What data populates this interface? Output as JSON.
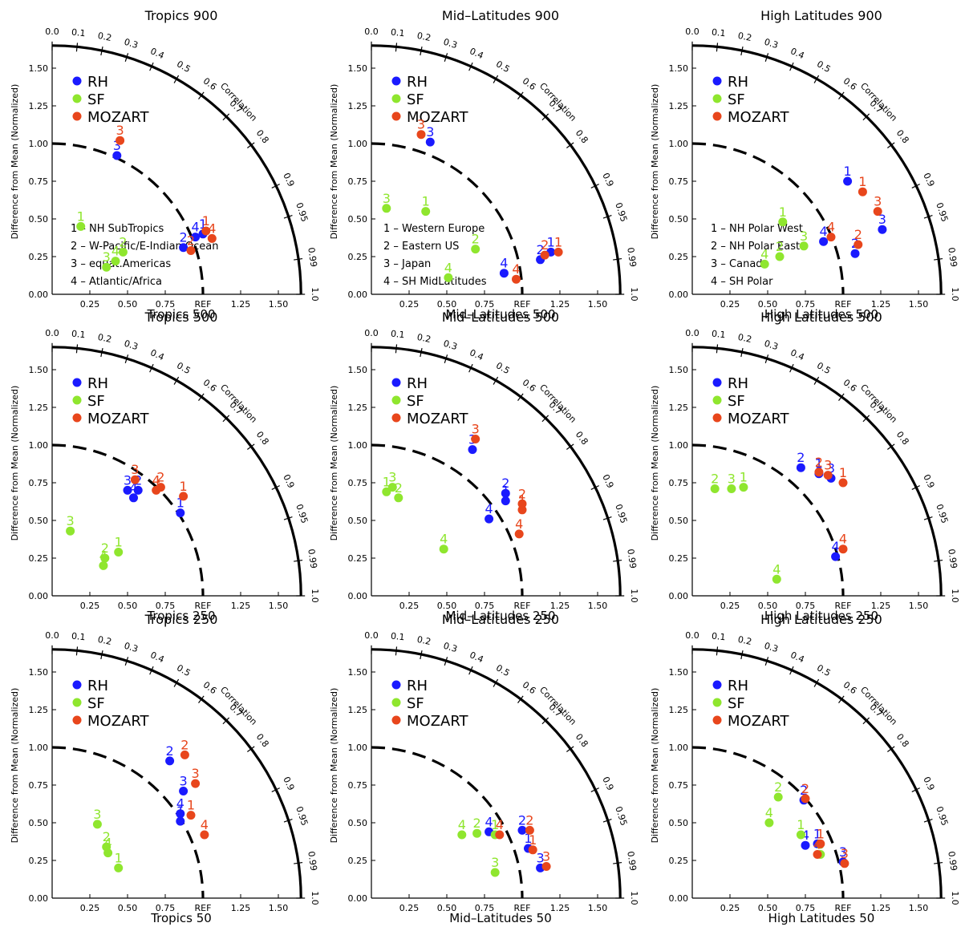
{
  "colors": {
    "RH": "#1a1aff",
    "SF": "#8fe62e",
    "MOZART": "#e8461c",
    "axis": "#000000"
  },
  "common": {
    "ylabel": "Difference from Mean (Normalized)",
    "correlation_label": "Correlation",
    "ref_label": "REF",
    "x_ticks": [
      "0.25",
      "0.50",
      "0.75",
      "REF",
      "1.25",
      "1.50"
    ],
    "y_ticks": [
      "0.00",
      "0.25",
      "0.50",
      "0.75",
      "1.00",
      "1.25",
      "1.50"
    ],
    "corr_ticks": [
      "0.0",
      "0.1",
      "0.2",
      "0.3",
      "0.4",
      "0.5",
      "0.6",
      "0.7",
      "0.8",
      "0.9",
      "0.95",
      "0.99",
      "1.0"
    ],
    "legend": [
      "RH",
      "SF",
      "MOZART"
    ]
  },
  "chart_data": [
    {
      "type": "scatter",
      "title": "Tropics 900",
      "xlabel": "Tropics 500",
      "region_key": [
        "1 – NH SubTropics",
        "2 – W-Pacific/E-Indian Ocean",
        "3 – equat.Americas",
        "4 – Atlantic/Africa"
      ],
      "series": [
        {
          "name": "RH",
          "points": [
            {
              "label": "1",
              "x": 1.0,
              "y": 0.4
            },
            {
              "label": "2",
              "x": 0.87,
              "y": 0.31
            },
            {
              "label": "3",
              "x": 0.43,
              "y": 0.92
            },
            {
              "label": "4",
              "x": 0.95,
              "y": 0.38
            }
          ]
        },
        {
          "name": "SF",
          "points": [
            {
              "label": "1",
              "x": 0.19,
              "y": 0.45
            },
            {
              "label": "2",
              "x": 0.47,
              "y": 0.28
            },
            {
              "label": "3",
              "x": 0.36,
              "y": 0.18
            },
            {
              "label": "4",
              "x": 0.42,
              "y": 0.22
            }
          ]
        },
        {
          "name": "MOZART",
          "points": [
            {
              "label": "1",
              "x": 1.02,
              "y": 0.42
            },
            {
              "label": "2",
              "x": 0.92,
              "y": 0.29
            },
            {
              "label": "3",
              "x": 0.45,
              "y": 1.02
            },
            {
              "label": "4",
              "x": 1.06,
              "y": 0.37
            }
          ]
        }
      ]
    },
    {
      "type": "scatter",
      "title": "Mid–Latitudes 900",
      "xlabel": "Mid–Latitudes 500",
      "region_key": [
        "1 – Western Europe",
        "2 – Eastern US",
        "3 – Japan",
        "4 – SH MidLatitudes"
      ],
      "series": [
        {
          "name": "RH",
          "points": [
            {
              "label": "1",
              "x": 1.19,
              "y": 0.28
            },
            {
              "label": "2",
              "x": 1.12,
              "y": 0.23
            },
            {
              "label": "3",
              "x": 0.39,
              "y": 1.01
            },
            {
              "label": "4",
              "x": 0.88,
              "y": 0.14
            }
          ]
        },
        {
          "name": "SF",
          "points": [
            {
              "label": "1",
              "x": 0.36,
              "y": 0.55
            },
            {
              "label": "2",
              "x": 0.69,
              "y": 0.3
            },
            {
              "label": "3",
              "x": 0.1,
              "y": 0.57
            },
            {
              "label": "4",
              "x": 0.51,
              "y": 0.11
            }
          ]
        },
        {
          "name": "MOZART",
          "points": [
            {
              "label": "1",
              "x": 1.24,
              "y": 0.28
            },
            {
              "label": "2",
              "x": 1.15,
              "y": 0.26
            },
            {
              "label": "3",
              "x": 0.33,
              "y": 1.06
            },
            {
              "label": "4",
              "x": 0.96,
              "y": 0.1
            }
          ]
        }
      ]
    },
    {
      "type": "scatter",
      "title": "High Latitudes 900",
      "xlabel": "High Latitudes 500",
      "region_key": [
        "1 – NH Polar West",
        "2 – NH Polar East",
        "3 – Canada",
        "4 – SH Polar"
      ],
      "series": [
        {
          "name": "RH",
          "points": [
            {
              "label": "1",
              "x": 1.03,
              "y": 0.75
            },
            {
              "label": "2",
              "x": 1.08,
              "y": 0.27
            },
            {
              "label": "3",
              "x": 1.26,
              "y": 0.43
            },
            {
              "label": "4",
              "x": 0.87,
              "y": 0.35
            }
          ]
        },
        {
          "name": "SF",
          "points": [
            {
              "label": "1",
              "x": 0.6,
              "y": 0.48
            },
            {
              "label": "2",
              "x": 0.58,
              "y": 0.25
            },
            {
              "label": "3",
              "x": 0.74,
              "y": 0.32
            },
            {
              "label": "4",
              "x": 0.48,
              "y": 0.2
            }
          ]
        },
        {
          "name": "MOZART",
          "points": [
            {
              "label": "1",
              "x": 1.13,
              "y": 0.68
            },
            {
              "label": "2",
              "x": 1.1,
              "y": 0.33
            },
            {
              "label": "3",
              "x": 1.23,
              "y": 0.55
            },
            {
              "label": "4",
              "x": 0.92,
              "y": 0.38
            }
          ]
        }
      ]
    },
    {
      "type": "scatter",
      "title": "Tropics 500",
      "xlabel": "Tropics 250",
      "series": [
        {
          "name": "RH",
          "points": [
            {
              "label": "1",
              "x": 0.85,
              "y": 0.55
            },
            {
              "label": "2",
              "x": 0.57,
              "y": 0.7
            },
            {
              "label": "3",
              "x": 0.5,
              "y": 0.7
            },
            {
              "label": "4",
              "x": 0.54,
              "y": 0.65
            }
          ]
        },
        {
          "name": "SF",
          "points": [
            {
              "label": "1",
              "x": 0.44,
              "y": 0.29
            },
            {
              "label": "2",
              "x": 0.35,
              "y": 0.25
            },
            {
              "label": "3",
              "x": 0.12,
              "y": 0.43
            },
            {
              "label": "4",
              "x": 0.34,
              "y": 0.2
            }
          ]
        },
        {
          "name": "MOZART",
          "points": [
            {
              "label": "1",
              "x": 0.87,
              "y": 0.66
            },
            {
              "label": "2",
              "x": 0.72,
              "y": 0.72
            },
            {
              "label": "3",
              "x": 0.55,
              "y": 0.77
            },
            {
              "label": "4",
              "x": 0.69,
              "y": 0.7
            }
          ]
        }
      ]
    },
    {
      "type": "scatter",
      "title": "Mid–Latitudes 500",
      "xlabel": "Mid–Latitudes 250",
      "series": [
        {
          "name": "RH",
          "points": [
            {
              "label": "1",
              "x": 0.89,
              "y": 0.63
            },
            {
              "label": "2",
              "x": 0.89,
              "y": 0.68
            },
            {
              "label": "3",
              "x": 0.67,
              "y": 0.97
            },
            {
              "label": "4",
              "x": 0.78,
              "y": 0.51
            }
          ]
        },
        {
          "name": "SF",
          "points": [
            {
              "label": "1",
              "x": 0.1,
              "y": 0.69
            },
            {
              "label": "2",
              "x": 0.18,
              "y": 0.65
            },
            {
              "label": "3",
              "x": 0.14,
              "y": 0.72
            },
            {
              "label": "4",
              "x": 0.48,
              "y": 0.31
            }
          ]
        },
        {
          "name": "MOZART",
          "points": [
            {
              "label": "1",
              "x": 1.0,
              "y": 0.57
            },
            {
              "label": "2",
              "x": 1.0,
              "y": 0.61
            },
            {
              "label": "3",
              "x": 0.69,
              "y": 1.04
            },
            {
              "label": "4",
              "x": 0.98,
              "y": 0.41
            }
          ]
        }
      ]
    },
    {
      "type": "scatter",
      "title": "High Latitudes 500",
      "xlabel": "High Latitudes 250",
      "series": [
        {
          "name": "RH",
          "points": [
            {
              "label": "1",
              "x": 0.84,
              "y": 0.81
            },
            {
              "label": "2",
              "x": 0.72,
              "y": 0.85
            },
            {
              "label": "3",
              "x": 0.92,
              "y": 0.78
            },
            {
              "label": "4",
              "x": 0.95,
              "y": 0.26
            }
          ]
        },
        {
          "name": "SF",
          "points": [
            {
              "label": "1",
              "x": 0.34,
              "y": 0.72
            },
            {
              "label": "2",
              "x": 0.15,
              "y": 0.71
            },
            {
              "label": "3",
              "x": 0.26,
              "y": 0.71
            },
            {
              "label": "4",
              "x": 0.56,
              "y": 0.11
            }
          ]
        },
        {
          "name": "MOZART",
          "points": [
            {
              "label": "1",
              "x": 1.0,
              "y": 0.75
            },
            {
              "label": "2",
              "x": 0.84,
              "y": 0.82
            },
            {
              "label": "3",
              "x": 0.9,
              "y": 0.8
            },
            {
              "label": "4",
              "x": 1.0,
              "y": 0.31
            }
          ]
        }
      ]
    },
    {
      "type": "scatter",
      "title": "Tropics 250",
      "xlabel": "Tropics 50",
      "series": [
        {
          "name": "RH",
          "points": [
            {
              "label": "1",
              "x": 0.85,
              "y": 0.51
            },
            {
              "label": "2",
              "x": 0.78,
              "y": 0.91
            },
            {
              "label": "3",
              "x": 0.87,
              "y": 0.71
            },
            {
              "label": "4",
              "x": 0.85,
              "y": 0.56
            }
          ]
        },
        {
          "name": "SF",
          "points": [
            {
              "label": "1",
              "x": 0.44,
              "y": 0.2
            },
            {
              "label": "2",
              "x": 0.36,
              "y": 0.34
            },
            {
              "label": "3",
              "x": 0.3,
              "y": 0.49
            },
            {
              "label": "4",
              "x": 0.37,
              "y": 0.3
            }
          ]
        },
        {
          "name": "MOZART",
          "points": [
            {
              "label": "1",
              "x": 0.92,
              "y": 0.55
            },
            {
              "label": "2",
              "x": 0.88,
              "y": 0.95
            },
            {
              "label": "3",
              "x": 0.95,
              "y": 0.76
            },
            {
              "label": "4",
              "x": 1.01,
              "y": 0.42
            }
          ]
        }
      ]
    },
    {
      "type": "scatter",
      "title": "Mid–Latitudes 250",
      "xlabel": "Mid–Latitudes 50",
      "series": [
        {
          "name": "RH",
          "points": [
            {
              "label": "1",
              "x": 1.04,
              "y": 0.33
            },
            {
              "label": "2",
              "x": 1.0,
              "y": 0.45
            },
            {
              "label": "3",
              "x": 1.12,
              "y": 0.2
            },
            {
              "label": "4",
              "x": 0.78,
              "y": 0.44
            }
          ]
        },
        {
          "name": "SF",
          "points": [
            {
              "label": "1",
              "x": 0.82,
              "y": 0.42
            },
            {
              "label": "2",
              "x": 0.7,
              "y": 0.43
            },
            {
              "label": "3",
              "x": 0.82,
              "y": 0.17
            },
            {
              "label": "4",
              "x": 0.6,
              "y": 0.42
            }
          ]
        },
        {
          "name": "MOZART",
          "points": [
            {
              "label": "1",
              "x": 1.07,
              "y": 0.32
            },
            {
              "label": "2",
              "x": 1.05,
              "y": 0.45
            },
            {
              "label": "3",
              "x": 1.16,
              "y": 0.21
            },
            {
              "label": "4",
              "x": 0.85,
              "y": 0.42
            }
          ]
        }
      ]
    },
    {
      "type": "scatter",
      "title": "High Latitudes 250",
      "xlabel": "High Latitudes 50",
      "series": [
        {
          "name": "RH",
          "points": [
            {
              "label": "1",
              "x": 0.83,
              "y": 0.36
            },
            {
              "label": "2",
              "x": 0.74,
              "y": 0.65
            },
            {
              "label": "3",
              "x": 1.0,
              "y": 0.24
            },
            {
              "label": "4",
              "x": 0.75,
              "y": 0.35
            }
          ]
        },
        {
          "name": "SF",
          "points": [
            {
              "label": "1",
              "x": 0.72,
              "y": 0.42
            },
            {
              "label": "2",
              "x": 0.57,
              "y": 0.67
            },
            {
              "label": "3",
              "x": 0.85,
              "y": 0.29
            },
            {
              "label": "4",
              "x": 0.51,
              "y": 0.5
            }
          ]
        },
        {
          "name": "MOZART",
          "points": [
            {
              "label": "1",
              "x": 0.85,
              "y": 0.36
            },
            {
              "label": "2",
              "x": 0.75,
              "y": 0.66
            },
            {
              "label": "3",
              "x": 1.01,
              "y": 0.23
            },
            {
              "label": "4",
              "x": 0.83,
              "y": 0.29
            }
          ]
        }
      ]
    }
  ]
}
